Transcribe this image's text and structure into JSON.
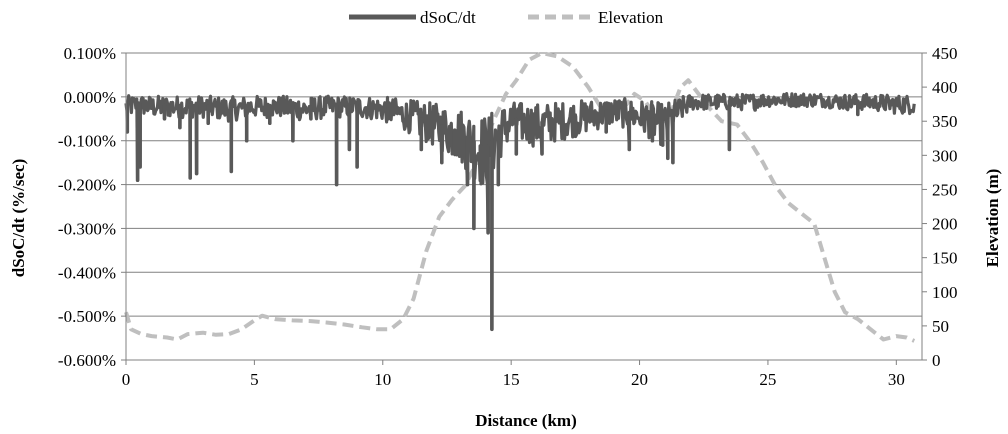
{
  "chart_data": {
    "type": "line",
    "title": "",
    "xlabel": "Distance (km)",
    "ylabel_left": "dSoC/dt (%/sec)",
    "ylabel_right": "Elevation (m)",
    "xlim": [
      0,
      31
    ],
    "ylim_left": [
      -0.6,
      0.1
    ],
    "ylim_right": [
      0,
      450
    ],
    "x_ticks": [
      0,
      5,
      10,
      15,
      20,
      25,
      30
    ],
    "y_left_ticks": [
      0.1,
      0.0,
      -0.1,
      -0.2,
      -0.3,
      -0.4,
      -0.5,
      -0.6
    ],
    "y_left_tick_labels": [
      "0.100%",
      "0.000%",
      "-0.100%",
      "-0.200%",
      "-0.300%",
      "-0.400%",
      "-0.500%",
      "-0.600%"
    ],
    "y_right_ticks": [
      450,
      400,
      350,
      300,
      250,
      200,
      150,
      100,
      50,
      0
    ],
    "y_right_tick_labels": [
      "450",
      "400",
      "350",
      "300",
      "250",
      "200",
      "150",
      "100",
      "50",
      "0"
    ],
    "grid": "horizontal",
    "legend_position": "top-center",
    "series": [
      {
        "name": "dSoC/dt",
        "axis": "left",
        "style": "solid",
        "color": "#595959",
        "baseline": [
          [
            0,
            -0.02
          ],
          [
            0.5,
            -0.015
          ],
          [
            1,
            -0.02
          ],
          [
            2,
            -0.02
          ],
          [
            3,
            -0.02
          ],
          [
            4,
            -0.025
          ],
          [
            5,
            -0.02
          ],
          [
            6,
            -0.02
          ],
          [
            7,
            -0.025
          ],
          [
            8,
            -0.02
          ],
          [
            9,
            -0.02
          ],
          [
            10,
            -0.025
          ],
          [
            11,
            -0.04
          ],
          [
            12,
            -0.06
          ],
          [
            13,
            -0.08
          ],
          [
            13.5,
            -0.1
          ],
          [
            14,
            -0.12
          ],
          [
            14.5,
            -0.08
          ],
          [
            15,
            -0.05
          ],
          [
            16,
            -0.06
          ],
          [
            17,
            -0.05
          ],
          [
            18,
            -0.04
          ],
          [
            19,
            -0.03
          ],
          [
            20,
            -0.04
          ],
          [
            21,
            -0.06
          ],
          [
            21.5,
            -0.03
          ],
          [
            22,
            -0.01
          ],
          [
            23,
            -0.01
          ],
          [
            24,
            -0.01
          ],
          [
            25,
            -0.005
          ],
          [
            26,
            -0.005
          ],
          [
            27,
            -0.005
          ],
          [
            28,
            -0.01
          ],
          [
            29,
            -0.01
          ],
          [
            30,
            -0.015
          ],
          [
            30.7,
            -0.015
          ]
        ],
        "spikes": [
          [
            0.05,
            -0.08
          ],
          [
            0.45,
            -0.19
          ],
          [
            0.55,
            -0.16
          ],
          [
            1.5,
            -0.05
          ],
          [
            2.1,
            -0.07
          ],
          [
            2.5,
            -0.185
          ],
          [
            2.75,
            -0.175
          ],
          [
            3.2,
            -0.06
          ],
          [
            4.1,
            -0.17
          ],
          [
            4.7,
            -0.1
          ],
          [
            5.6,
            -0.06
          ],
          [
            6.5,
            -0.1
          ],
          [
            7.2,
            -0.05
          ],
          [
            8.2,
            -0.2
          ],
          [
            8.7,
            -0.12
          ],
          [
            9.0,
            -0.16
          ],
          [
            10.2,
            -0.05
          ],
          [
            11.5,
            -0.12
          ],
          [
            12.3,
            -0.15
          ],
          [
            12.8,
            -0.12
          ],
          [
            13.3,
            -0.2
          ],
          [
            13.55,
            -0.3
          ],
          [
            13.8,
            -0.19
          ],
          [
            14.1,
            -0.31
          ],
          [
            14.25,
            -0.53
          ],
          [
            14.5,
            -0.2
          ],
          [
            15.2,
            -0.13
          ],
          [
            16.2,
            -0.13
          ],
          [
            17.5,
            -0.09
          ],
          [
            18.7,
            -0.08
          ],
          [
            19.6,
            -0.12
          ],
          [
            20.5,
            -0.1
          ],
          [
            20.9,
            -0.11
          ],
          [
            21.1,
            -0.14
          ],
          [
            21.3,
            -0.15
          ],
          [
            23.5,
            -0.12
          ],
          [
            24.5,
            -0.03
          ],
          [
            28.5,
            -0.04
          ]
        ],
        "upper_noise": 0.01
      },
      {
        "name": "Elevation",
        "axis": "right",
        "style": "dashed",
        "color": "#bfbfbf",
        "points": [
          [
            0,
            70
          ],
          [
            0.2,
            45
          ],
          [
            0.6,
            38
          ],
          [
            1,
            35
          ],
          [
            1.6,
            33
          ],
          [
            2,
            30
          ],
          [
            2.4,
            38
          ],
          [
            3,
            40
          ],
          [
            3.5,
            37
          ],
          [
            4,
            38
          ],
          [
            4.5,
            45
          ],
          [
            5,
            58
          ],
          [
            5.3,
            65
          ],
          [
            5.8,
            60
          ],
          [
            6.5,
            58
          ],
          [
            7.2,
            57
          ],
          [
            7.8,
            55
          ],
          [
            8.5,
            52
          ],
          [
            9.2,
            48
          ],
          [
            9.8,
            45
          ],
          [
            10.3,
            45
          ],
          [
            10.8,
            60
          ],
          [
            11.2,
            90
          ],
          [
            11.7,
            160
          ],
          [
            12.2,
            210
          ],
          [
            12.7,
            235
          ],
          [
            13.2,
            255
          ],
          [
            13.8,
            300
          ],
          [
            14.3,
            350
          ],
          [
            14.8,
            390
          ],
          [
            15.2,
            410
          ],
          [
            15.7,
            440
          ],
          [
            16.2,
            450
          ],
          [
            16.8,
            445
          ],
          [
            17.4,
            430
          ],
          [
            18,
            400
          ],
          [
            18.5,
            370
          ],
          [
            19,
            365
          ],
          [
            19.5,
            375
          ],
          [
            19.8,
            390
          ],
          [
            20.2,
            380
          ],
          [
            20.7,
            355
          ],
          [
            21,
            350
          ],
          [
            21.3,
            370
          ],
          [
            21.6,
            400
          ],
          [
            21.9,
            410
          ],
          [
            22.3,
            390
          ],
          [
            22.7,
            370
          ],
          [
            23.2,
            350
          ],
          [
            23.8,
            345
          ],
          [
            24.3,
            320
          ],
          [
            24.8,
            290
          ],
          [
            25.3,
            255
          ],
          [
            25.8,
            230
          ],
          [
            26.3,
            215
          ],
          [
            26.8,
            200
          ],
          [
            27.2,
            150
          ],
          [
            27.6,
            100
          ],
          [
            28,
            70
          ],
          [
            28.5,
            60
          ],
          [
            29,
            45
          ],
          [
            29.5,
            30
          ],
          [
            30,
            35
          ],
          [
            30.4,
            33
          ],
          [
            30.7,
            28
          ]
        ]
      }
    ]
  }
}
